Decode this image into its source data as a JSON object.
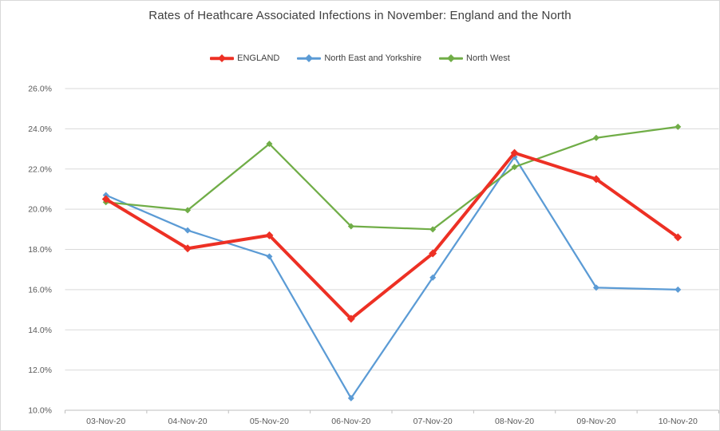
{
  "chart_data": {
    "type": "line",
    "title": "Rates of Heathcare Associated Infections in November: England and the North",
    "categories": [
      "03-Nov-20",
      "04-Nov-20",
      "05-Nov-20",
      "06-Nov-20",
      "07-Nov-20",
      "08-Nov-20",
      "09-Nov-20",
      "10-Nov-20"
    ],
    "series": [
      {
        "name": "ENGLAND",
        "color": "#ed3024",
        "line_width": 4,
        "marker_size": 5,
        "values": [
          20.5,
          18.05,
          18.7,
          14.55,
          17.8,
          22.8,
          21.5,
          18.6
        ]
      },
      {
        "name": "North East and Yorkshire",
        "color": "#5b9bd5",
        "line_width": 2.25,
        "marker_size": 4,
        "values": [
          20.7,
          18.95,
          17.65,
          10.6,
          16.6,
          22.6,
          16.1,
          16.0
        ]
      },
      {
        "name": "North West",
        "color": "#70ad47",
        "line_width": 2.25,
        "marker_size": 4,
        "values": [
          20.35,
          19.95,
          23.25,
          19.15,
          19.0,
          22.1,
          23.55,
          24.1
        ]
      }
    ],
    "ylim": [
      10,
      26
    ],
    "ytick_step": 2,
    "ytick_suffix": "%",
    "ytick_labels": [
      "10.0%",
      "12.0%",
      "14.0%",
      "16.0%",
      "18.0%",
      "20.0%",
      "22.0%",
      "24.0%",
      "26.0%"
    ],
    "marker": "diamond",
    "grid": true,
    "legend_position": "top",
    "draw_order": [
      1,
      2,
      0
    ]
  },
  "colors": {
    "grid": "#d9d9d9",
    "axis": "#bfbfbf",
    "tick_text": "#595959",
    "title_text": "#404040",
    "frame_border": "#d9d9d9",
    "background": "#ffffff"
  }
}
